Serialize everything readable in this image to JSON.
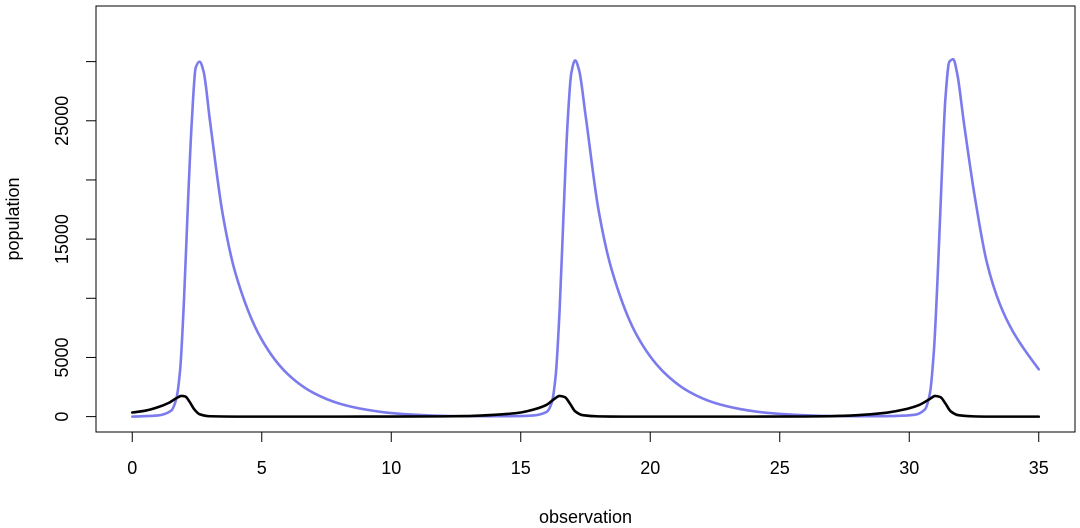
{
  "chart_data": {
    "type": "line",
    "title": "",
    "xlabel": "observation",
    "ylabel": "population",
    "xlim": [
      -1.4,
      36.4
    ],
    "ylim": [
      -1300,
      34700
    ],
    "x_ticks": [
      0,
      5,
      10,
      15,
      20,
      25,
      30,
      35
    ],
    "x_tick_labels": [
      "0",
      "5",
      "10",
      "15",
      "20",
      "25",
      "30",
      "35"
    ],
    "y_ticks": [
      0,
      5000,
      10000,
      15000,
      20000,
      25000,
      30000
    ],
    "y_tick_labels": [
      "0",
      "5000",
      "",
      "15000",
      "",
      "25000",
      ""
    ],
    "grid": false,
    "series": [
      {
        "color": "#7b7bed",
        "points": [
          [
            0,
            0
          ],
          [
            1,
            100
          ],
          [
            1.5,
            500
          ],
          [
            1.7,
            1500
          ],
          [
            1.85,
            4000
          ],
          [
            2.0,
            10000
          ],
          [
            2.15,
            18000
          ],
          [
            2.3,
            25000
          ],
          [
            2.45,
            29500
          ],
          [
            2.6,
            30000
          ],
          [
            2.75,
            29200
          ],
          [
            3.0,
            25000
          ],
          [
            3.5,
            17000
          ],
          [
            4.0,
            12000
          ],
          [
            5.0,
            6500
          ],
          [
            6.0,
            3600
          ],
          [
            7.0,
            2000
          ],
          [
            8.0,
            1100
          ],
          [
            9.0,
            600
          ],
          [
            10.0,
            300
          ],
          [
            11.0,
            150
          ],
          [
            12.0,
            60
          ],
          [
            13.0,
            30
          ],
          [
            14.0,
            30
          ],
          [
            15.0,
            50
          ],
          [
            15.5,
            100
          ],
          [
            16.0,
            400
          ],
          [
            16.2,
            1200
          ],
          [
            16.35,
            3500
          ],
          [
            16.5,
            9000
          ],
          [
            16.65,
            17000
          ],
          [
            16.8,
            24500
          ],
          [
            16.95,
            29000
          ],
          [
            17.1,
            30100
          ],
          [
            17.25,
            29300
          ],
          [
            17.5,
            25500
          ],
          [
            18.0,
            17500
          ],
          [
            18.5,
            12500
          ],
          [
            19.5,
            6800
          ],
          [
            20.5,
            3800
          ],
          [
            21.5,
            2100
          ],
          [
            22.5,
            1150
          ],
          [
            23.5,
            630
          ],
          [
            24.5,
            320
          ],
          [
            25.5,
            160
          ],
          [
            26.5,
            70
          ],
          [
            27.5,
            35
          ],
          [
            28.5,
            35
          ],
          [
            29.5,
            60
          ],
          [
            30.2,
            150
          ],
          [
            30.6,
            600
          ],
          [
            30.8,
            2000
          ],
          [
            30.95,
            5500
          ],
          [
            31.1,
            12000
          ],
          [
            31.25,
            20000
          ],
          [
            31.4,
            27000
          ],
          [
            31.55,
            30000
          ],
          [
            31.7,
            30200
          ],
          [
            31.85,
            29000
          ],
          [
            32.1,
            25000
          ],
          [
            32.5,
            19000
          ],
          [
            33.0,
            13000
          ],
          [
            33.5,
            9500
          ],
          [
            34.0,
            7200
          ],
          [
            34.5,
            5500
          ],
          [
            35.0,
            4000
          ]
        ]
      },
      {
        "color": "#000000",
        "points": [
          [
            0,
            350
          ],
          [
            0.5,
            500
          ],
          [
            1.0,
            800
          ],
          [
            1.4,
            1150
          ],
          [
            1.7,
            1550
          ],
          [
            1.9,
            1750
          ],
          [
            2.05,
            1700
          ],
          [
            2.2,
            1300
          ],
          [
            2.4,
            600
          ],
          [
            2.6,
            200
          ],
          [
            3.0,
            30
          ],
          [
            4.0,
            0
          ],
          [
            8.0,
            0
          ],
          [
            10.0,
            5
          ],
          [
            12.0,
            20
          ],
          [
            13.0,
            50
          ],
          [
            14.0,
            150
          ],
          [
            15.0,
            350
          ],
          [
            15.5,
            600
          ],
          [
            16.0,
            1000
          ],
          [
            16.3,
            1500
          ],
          [
            16.5,
            1750
          ],
          [
            16.7,
            1650
          ],
          [
            16.9,
            1100
          ],
          [
            17.1,
            450
          ],
          [
            17.4,
            120
          ],
          [
            18.0,
            20
          ],
          [
            19.0,
            0
          ],
          [
            24.0,
            0
          ],
          [
            26.0,
            10
          ],
          [
            27.0,
            40
          ],
          [
            28.0,
            120
          ],
          [
            29.0,
            300
          ],
          [
            29.8,
            600
          ],
          [
            30.4,
            1000
          ],
          [
            30.8,
            1500
          ],
          [
            31.0,
            1750
          ],
          [
            31.2,
            1650
          ],
          [
            31.4,
            1100
          ],
          [
            31.6,
            450
          ],
          [
            31.9,
            120
          ],
          [
            32.5,
            20
          ],
          [
            33.0,
            0
          ],
          [
            35.0,
            0
          ]
        ]
      }
    ]
  }
}
